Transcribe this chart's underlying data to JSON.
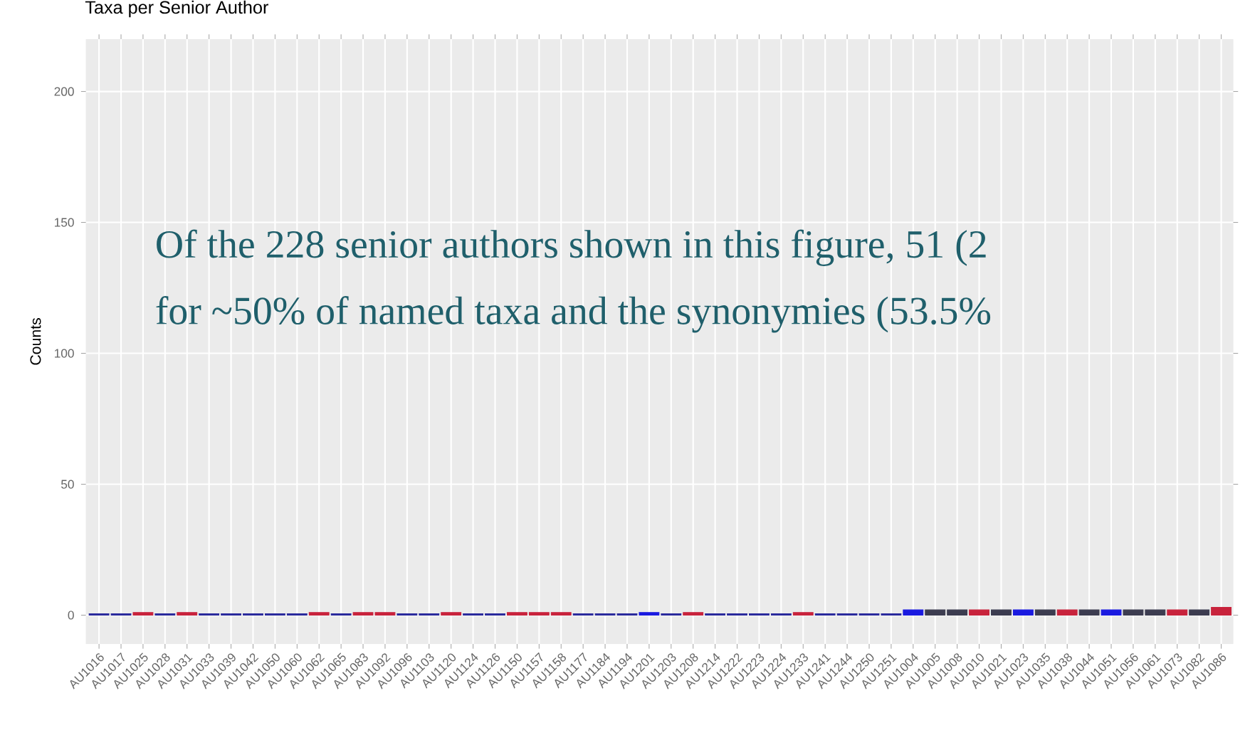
{
  "chart_data": {
    "type": "bar",
    "title": "Taxa per Senior Author",
    "ylabel": "Counts",
    "categories": [
      "AU1016",
      "AU1017",
      "AU1025",
      "AU1028",
      "AU1031",
      "AU1033",
      "AU1039",
      "AU1042",
      "AU1050",
      "AU1060",
      "AU1062",
      "AU1065",
      "AU1083",
      "AU1092",
      "AU1096",
      "AU1103",
      "AU1120",
      "AU1124",
      "AU1126",
      "AU1150",
      "AU1157",
      "AU1158",
      "AU1177",
      "AU1184",
      "AU1194",
      "AU1201",
      "AU1203",
      "AU1208",
      "AU1214",
      "AU1222",
      "AU1223",
      "AU1224",
      "AU1233",
      "AU1241",
      "AU1244",
      "AU1250",
      "AU1251",
      "AU1004",
      "AU1005",
      "AU1008",
      "AU1010",
      "AU1021",
      "AU1023",
      "AU1035",
      "AU1038",
      "AU1044",
      "AU1051",
      "AU1056",
      "AU1061",
      "AU1073",
      "AU1082",
      "AU1086"
    ],
    "values": [
      0.5,
      0.5,
      1,
      0.5,
      1,
      0.5,
      0.5,
      0.5,
      0.5,
      0.5,
      1,
      0.5,
      1,
      1,
      0.5,
      0.5,
      1,
      0.5,
      0.5,
      1,
      1,
      1,
      0.5,
      0.5,
      0.5,
      1,
      0.5,
      1,
      0.5,
      0.5,
      0.5,
      0.5,
      1,
      0.5,
      0.5,
      0.5,
      0.5,
      2,
      2,
      2,
      2,
      2,
      2,
      2,
      2,
      2,
      2,
      2,
      2,
      2,
      2,
      3
    ],
    "colors": [
      "#2b2b9c",
      "#2b2b9c",
      "#c8233c",
      "#2b2b9c",
      "#c8233c",
      "#2b2b9c",
      "#2b2b9c",
      "#2b2b9c",
      "#2b2b9c",
      "#2b2b9c",
      "#c8233c",
      "#2b2b9c",
      "#c8233c",
      "#c8233c",
      "#2b2b9c",
      "#2b2b9c",
      "#c8233c",
      "#2b2b9c",
      "#2b2b9c",
      "#c8233c",
      "#c8233c",
      "#c8233c",
      "#2b2b9c",
      "#2b2b9c",
      "#2b2b9c",
      "#1a1ae0",
      "#2b2b9c",
      "#c8233c",
      "#2b2b9c",
      "#2b2b9c",
      "#2b2b9c",
      "#2b2b9c",
      "#c8233c",
      "#2b2b9c",
      "#2b2b9c",
      "#2b2b9c",
      "#2b2b9c",
      "#1a1ae0",
      "#3c3c50",
      "#3c3c50",
      "#c8233c",
      "#3c3c50",
      "#1a1ae0",
      "#3c3c50",
      "#c8233c",
      "#3c3c50",
      "#1a1ae0",
      "#3c3c50",
      "#3c3c50",
      "#c8233c",
      "#3c3c50",
      "#c8233c"
    ],
    "ylim": [
      -11,
      220
    ],
    "yticks": [
      0,
      50,
      100,
      150,
      200
    ],
    "grid": true,
    "annotations": [
      "Of the 228 senior authors shown in this figure, 51 (2",
      "for ~50% of named taxa and the synonymies (53.5%"
    ]
  }
}
